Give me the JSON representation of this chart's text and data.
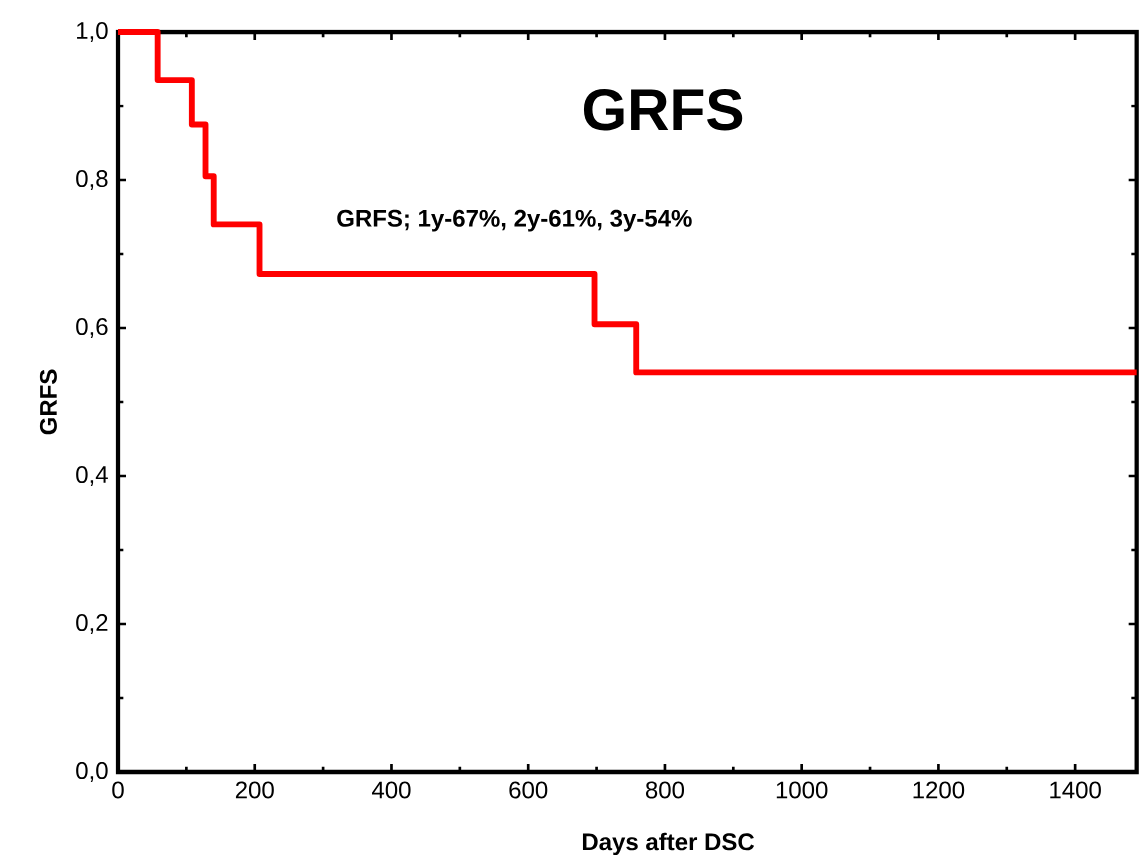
{
  "chart_data": {
    "type": "step",
    "title": "GRFS",
    "xlabel": "Days after DSC",
    "ylabel": "GRFS",
    "annotations": [
      "GRFS; 1y-67%, 2y-61%, 3y-54%"
    ],
    "x": [
      0,
      58,
      108,
      128,
      140,
      207,
      697,
      758,
      1490
    ],
    "series": [
      {
        "color": "#ff0000",
        "values": [
          1.0,
          0.935,
          0.875,
          0.805,
          0.74,
          0.673,
          0.605,
          0.54,
          0.54
        ]
      }
    ],
    "xlim": [
      0,
      1490
    ],
    "ylim": [
      0,
      1.0
    ],
    "xticks": [
      0,
      200,
      400,
      600,
      800,
      1000,
      1200,
      1400
    ],
    "yticks": [
      {
        "value": 0,
        "label": "0,0"
      },
      {
        "value": 0.2,
        "label": "0,2"
      },
      {
        "value": 0.4,
        "label": "0,4"
      },
      {
        "value": 0.6,
        "label": "0,6"
      },
      {
        "value": 0.8,
        "label": "0,8"
      },
      {
        "value": 1.0,
        "label": "1,0"
      }
    ]
  }
}
